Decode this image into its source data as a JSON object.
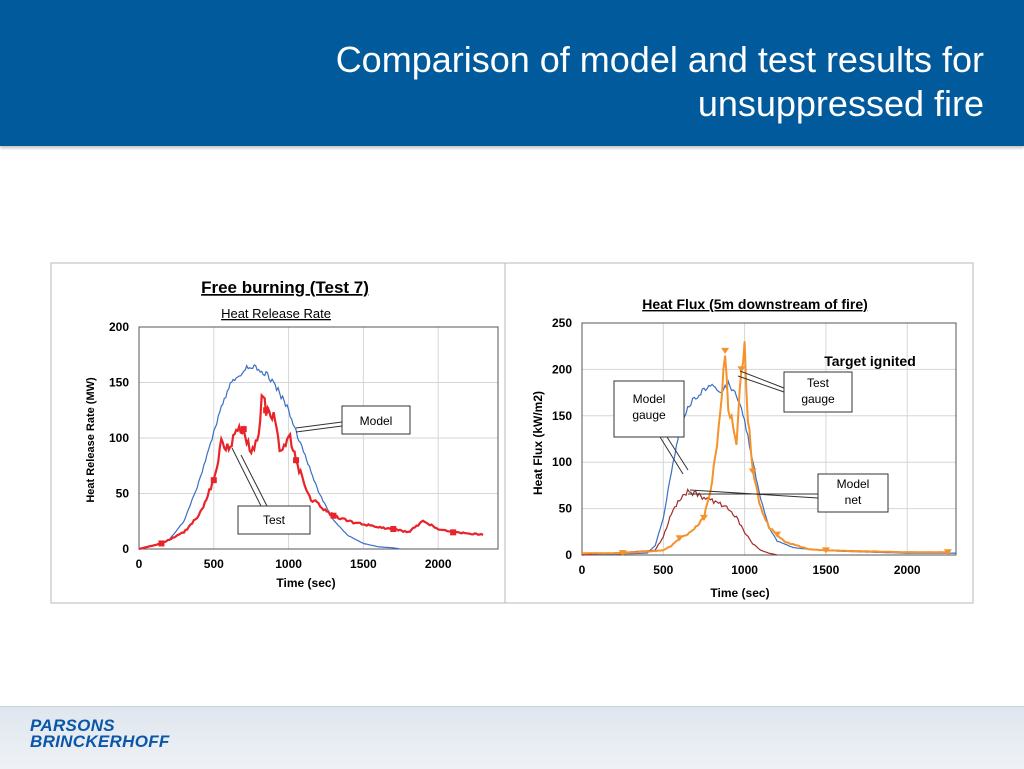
{
  "slide": {
    "title_line1": "Comparison of model and test results for",
    "title_line2": "unsuppressed fire",
    "logo_line1": "PARSONS",
    "logo_line2": "BRINCKERHOFF"
  },
  "colors": {
    "header": "#005a9c",
    "model_blue": "#3a6fc4",
    "test_red": "#e8232a",
    "test_orange": "#f5922a",
    "model_net_darkred": "#a52a2a"
  },
  "chart_data": [
    {
      "type": "line",
      "title": "Free burning (Test 7)",
      "subtitle": "Heat Release Rate",
      "xlabel": "Time (sec)",
      "ylabel": "Heat Release Rate (MW)",
      "xlim": [
        0,
        2400
      ],
      "ylim": [
        0,
        200
      ],
      "xticks": [
        0,
        500,
        1000,
        1500,
        2000
      ],
      "yticks": [
        0,
        50,
        100,
        150,
        200
      ],
      "grid": true,
      "series": [
        {
          "name": "Model",
          "color": "#3a6fc4",
          "x": [
            0,
            100,
            200,
            300,
            400,
            500,
            550,
            600,
            650,
            700,
            750,
            800,
            850,
            900,
            950,
            1000,
            1050,
            1100,
            1150,
            1200,
            1250,
            1300,
            1400,
            1500,
            1600,
            1700,
            1750
          ],
          "y": [
            0,
            3,
            8,
            25,
            60,
            105,
            128,
            145,
            155,
            161,
            164,
            162,
            158,
            150,
            138,
            125,
            105,
            88,
            70,
            52,
            38,
            26,
            12,
            5,
            2,
            1,
            0
          ]
        },
        {
          "name": "Test",
          "color": "#e8232a",
          "x": [
            0,
            150,
            300,
            400,
            450,
            500,
            550,
            600,
            650,
            700,
            750,
            800,
            820,
            850,
            900,
            950,
            1000,
            1050,
            1100,
            1150,
            1200,
            1300,
            1400,
            1500,
            1600,
            1700,
            1800,
            1900,
            2000,
            2100,
            2200,
            2300
          ],
          "y": [
            0,
            5,
            15,
            30,
            45,
            62,
            95,
            90,
            105,
            108,
            85,
            100,
            140,
            125,
            120,
            85,
            105,
            80,
            60,
            45,
            40,
            30,
            25,
            22,
            20,
            18,
            15,
            25,
            18,
            15,
            14,
            13
          ]
        }
      ],
      "annotations": [
        "Model",
        "Test"
      ]
    },
    {
      "type": "line",
      "title": "Heat Flux (5m downstream of fire)",
      "xlabel": "Time (sec)",
      "ylabel": "Heat Flux (kW/m2)",
      "xlim": [
        0,
        2300
      ],
      "ylim": [
        0,
        250
      ],
      "xticks": [
        0,
        500,
        1000,
        1500,
        2000
      ],
      "yticks": [
        0,
        50,
        100,
        150,
        200,
        250
      ],
      "grid": true,
      "series": [
        {
          "name": "Model gauge",
          "color": "#3a6fc4",
          "x": [
            0,
            400,
            450,
            500,
            550,
            600,
            650,
            700,
            750,
            800,
            850,
            900,
            950,
            1000,
            1050,
            1100,
            1150,
            1200,
            1300,
            1400,
            1500,
            1600,
            1800,
            2000,
            2300
          ],
          "y": [
            0,
            2,
            10,
            40,
            90,
            135,
            160,
            170,
            178,
            182,
            175,
            185,
            172,
            145,
            100,
            60,
            30,
            15,
            8,
            6,
            5,
            4,
            3,
            2,
            2
          ]
        },
        {
          "name": "Model net",
          "color": "#a52a2a",
          "x": [
            0,
            450,
            500,
            550,
            600,
            650,
            700,
            750,
            800,
            850,
            900,
            950,
            1000,
            1050,
            1100,
            1150,
            1200
          ],
          "y": [
            0,
            5,
            20,
            45,
            60,
            68,
            66,
            62,
            58,
            55,
            50,
            40,
            25,
            12,
            5,
            2,
            0
          ]
        },
        {
          "name": "Test gauge",
          "color": "#f5922a",
          "x": [
            0,
            250,
            500,
            550,
            600,
            650,
            700,
            750,
            800,
            850,
            880,
            900,
            950,
            980,
            1000,
            1020,
            1050,
            1100,
            1150,
            1200,
            1250,
            1400,
            1500,
            1750,
            2000,
            2250
          ],
          "y": [
            2,
            2,
            5,
            10,
            18,
            22,
            30,
            40,
            80,
            150,
            220,
            160,
            120,
            200,
            225,
            150,
            90,
            50,
            30,
            22,
            14,
            6,
            5,
            4,
            3,
            3
          ]
        }
      ],
      "annotations": [
        "Target ignited",
        "Test gauge",
        "Model gauge",
        "Model net"
      ]
    }
  ]
}
